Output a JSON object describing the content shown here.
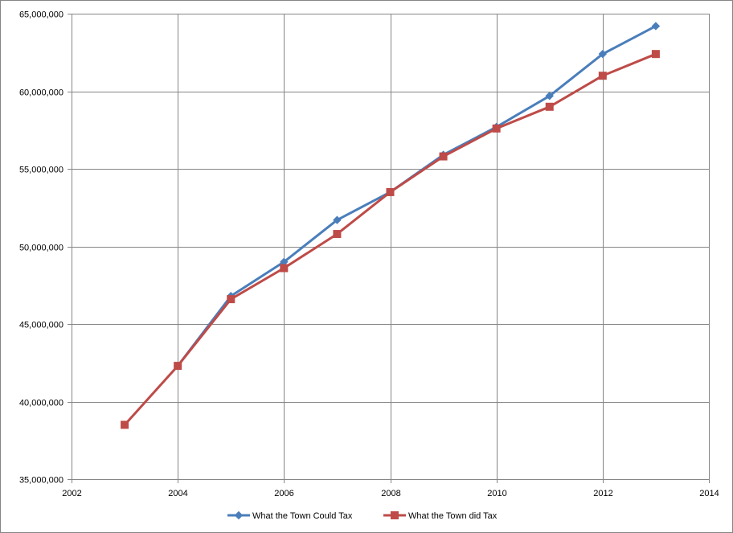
{
  "chart_data": {
    "type": "line",
    "title": "",
    "xlabel": "",
    "ylabel": "",
    "xlim": [
      2002,
      2014
    ],
    "ylim": [
      35000000,
      65000000
    ],
    "x_ticks": [
      2002,
      2004,
      2006,
      2008,
      2010,
      2012,
      2014
    ],
    "x_tick_labels": [
      "2002",
      "2004",
      "2006",
      "2008",
      "2010",
      "2012",
      "2014"
    ],
    "y_ticks": [
      35000000,
      40000000,
      45000000,
      50000000,
      55000000,
      60000000,
      65000000
    ],
    "y_tick_labels": [
      "35,000,000",
      "40,000,000",
      "45,000,000",
      "50,000,000",
      "55,000,000",
      "60,000,000",
      "65,000,000"
    ],
    "grid": true,
    "legend_position": "bottom",
    "series": [
      {
        "name": "What the Town Could Tax",
        "color": "#4a7ebb",
        "marker": "diamond",
        "x": [
          2004,
          2005,
          2006,
          2007,
          2008,
          2009,
          2010,
          2011,
          2012,
          2013
        ],
        "y": [
          42300000,
          46800000,
          49000000,
          51700000,
          53500000,
          55900000,
          57700000,
          59700000,
          62400000,
          64200000
        ]
      },
      {
        "name": "What the Town did Tax",
        "color": "#be4b48",
        "marker": "square",
        "x": [
          2003,
          2004,
          2005,
          2006,
          2007,
          2008,
          2009,
          2010,
          2011,
          2012,
          2013
        ],
        "y": [
          38500000,
          42300000,
          46600000,
          48600000,
          50800000,
          53500000,
          55800000,
          57600000,
          59000000,
          61000000,
          62400000
        ]
      }
    ]
  }
}
